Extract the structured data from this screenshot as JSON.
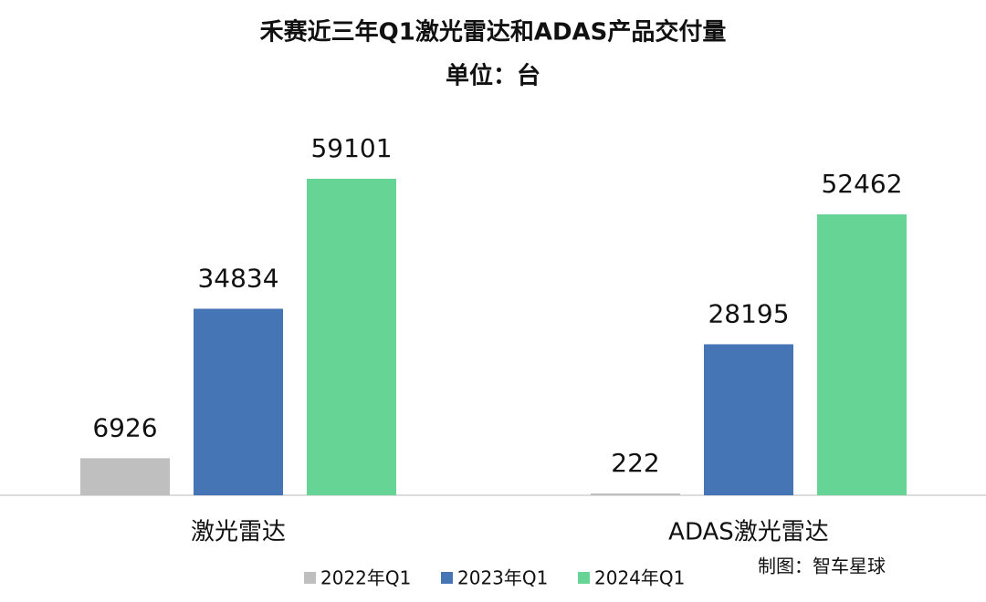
{
  "chart_data": {
    "type": "bar",
    "title": "禾赛近三年Q1激光雷达和ADAS产品交付量",
    "subtitle": "单位：台",
    "categories": [
      "激光雷达",
      "ADAS激光雷达"
    ],
    "series": [
      {
        "name": "2022年Q1",
        "color": "#bfbfbf",
        "values": [
          6926,
          222
        ]
      },
      {
        "name": "2023年Q1",
        "color": "#4575b4",
        "values": [
          34834,
          28195
        ]
      },
      {
        "name": "2024年Q1",
        "color": "#66d494",
        "values": [
          59101,
          52462
        ]
      }
    ],
    "credit": "制图：智车星球",
    "legend": "bottom"
  }
}
